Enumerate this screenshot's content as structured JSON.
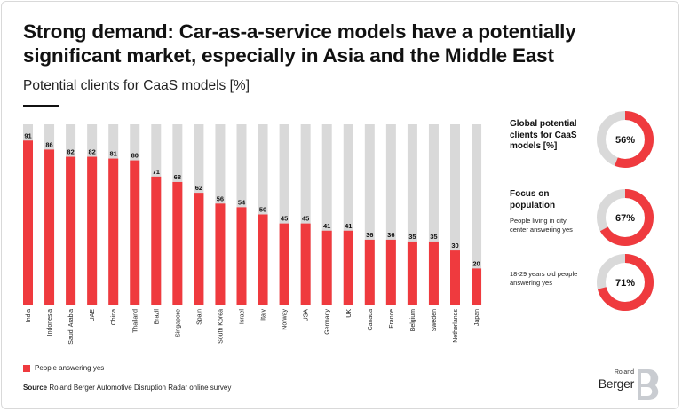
{
  "header": {
    "title": "Strong demand: Car-as-a-service models have a potentially significant market, especially in Asia and the Middle East",
    "subtitle": "Potential clients for CaaS models [%]"
  },
  "colors": {
    "accent": "#ef3a3e",
    "track": "#d9d9d9",
    "text": "#111111"
  },
  "chart_data": {
    "type": "bar",
    "ylim": [
      0,
      100
    ],
    "categories": [
      "India",
      "Indonesia",
      "Saudi Arabia",
      "UAE",
      "China",
      "Thailand",
      "Brazil",
      "Singapore",
      "Spain",
      "South Korea",
      "Israel",
      "Italy",
      "Norway",
      "USA",
      "Germany",
      "UK",
      "Canada",
      "France",
      "Belgium",
      "Sweden",
      "Netherlands",
      "Japan"
    ],
    "series": [
      {
        "name": "People answering yes",
        "values": [
          91,
          86,
          82,
          82,
          81,
          80,
          71,
          68,
          62,
          56,
          54,
          50,
          45,
          45,
          41,
          41,
          36,
          36,
          35,
          35,
          30,
          20
        ]
      }
    ],
    "grid": false,
    "legend": "bottom-left"
  },
  "side_panel": {
    "global": {
      "heading": "Global potential clients for CaaS models [%]",
      "value": 56,
      "label": "56%"
    },
    "population_heading": "Focus on population",
    "city": {
      "text": "People living in city center answering yes",
      "value": 67,
      "label": "67%"
    },
    "young": {
      "text": "18-29 years old people answering yes",
      "value": 71,
      "label": "71%"
    }
  },
  "legend": {
    "label": "People answering yes"
  },
  "footer": {
    "source_label": "Source",
    "source_text": "Roland Berger Automotive Disruption Radar online survey"
  },
  "logo": {
    "top": "Roland",
    "bottom": "Berger"
  }
}
